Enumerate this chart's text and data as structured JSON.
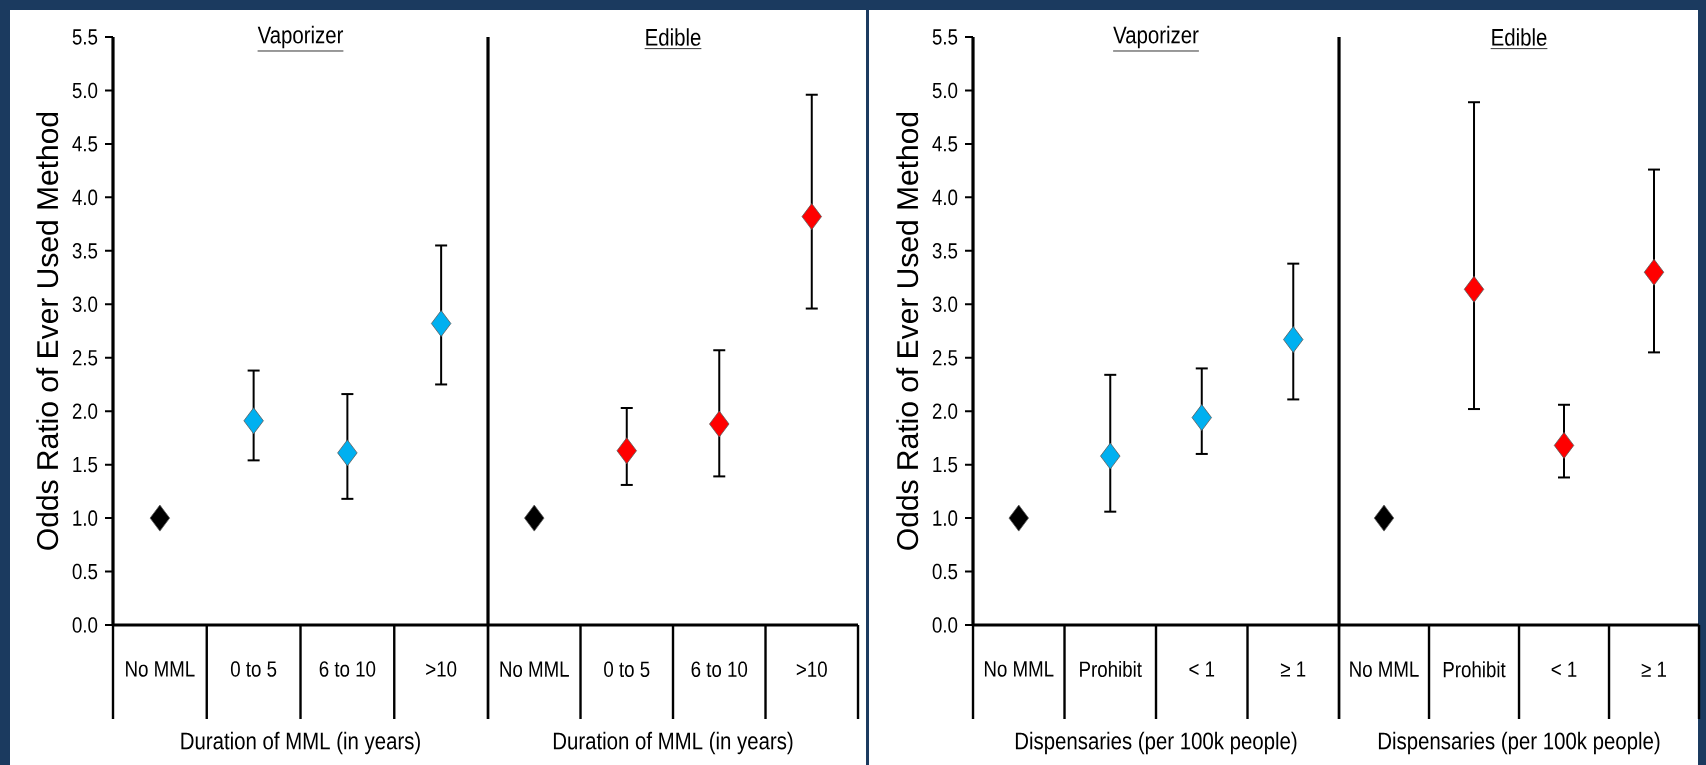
{
  "chart_data": [
    {
      "type": "scatter",
      "title": "Vaporizer",
      "xlabel": "Duration of MML (in years)",
      "ylabel": "Odds Ratio of Ever Used Method",
      "categories": [
        "No MML",
        "0 to 5",
        "6 to 10",
        ">10"
      ],
      "marker": "diamond",
      "ylim": [
        0,
        5.5
      ],
      "yticks": [
        {
          "value": 0,
          "label": "0.0"
        },
        0.5,
        {
          "value": 1,
          "label": "1.0"
        },
        1.5,
        {
          "value": 2,
          "label": "2.0"
        },
        2.5,
        {
          "value": 3,
          "label": "3.0"
        },
        3.5,
        {
          "value": 4,
          "label": "4.0"
        },
        4.5,
        {
          "value": 5,
          "label": "5.0"
        },
        5.5
      ],
      "series": [
        {
          "color": "#000000",
          "values": [
            1.0,
            null,
            null,
            null
          ]
        },
        {
          "color": "#00b0f0",
          "values": [
            null,
            1.91,
            1.61,
            2.82
          ],
          "errors": [
            null,
            [
              1.54,
              2.38
            ],
            [
              1.18,
              2.16
            ],
            [
              2.25,
              3.55
            ]
          ]
        }
      ]
    },
    {
      "type": "scatter",
      "title": "Edible",
      "xlabel": "Duration of MML (in years)",
      "categories": [
        "No MML",
        "0 to 5",
        "6 to 10",
        ">10"
      ],
      "marker": "diamond",
      "ylim": [
        0,
        5.5
      ],
      "tick_labels": "x",
      "series": [
        {
          "color": "#000000",
          "values": [
            1.0,
            null,
            null,
            null
          ]
        },
        {
          "color": "#ff0000",
          "values": [
            null,
            1.63,
            1.88,
            3.82
          ],
          "errors": [
            null,
            [
              1.31,
              2.03
            ],
            [
              1.39,
              2.57
            ],
            [
              2.96,
              4.96
            ]
          ]
        }
      ]
    },
    {
      "type": "scatter",
      "title": "Vaporizer",
      "xlabel": "Dispensaries (per 100k people)",
      "ylabel": "Odds Ratio of Ever Used Method",
      "categories": [
        "No MML",
        "Prohibit",
        "< 1",
        "≥ 1"
      ],
      "marker": "diamond",
      "ylim": [
        0,
        5.5
      ],
      "yticks": [
        {
          "value": 0,
          "label": "0.0"
        },
        0.5,
        {
          "value": 1,
          "label": "1.0"
        },
        1.5,
        {
          "value": 2,
          "label": "2.0"
        },
        2.5,
        {
          "value": 3,
          "label": "3.0"
        },
        3.5,
        {
          "value": 4,
          "label": "4.0"
        },
        4.5,
        {
          "value": 5,
          "label": "5.0"
        },
        5.5
      ],
      "series": [
        {
          "color": "#000000",
          "values": [
            1.0,
            null,
            null,
            null
          ]
        },
        {
          "color": "#00b0f0",
          "values": [
            null,
            1.58,
            1.94,
            2.67
          ],
          "errors": [
            null,
            [
              1.06,
              2.34
            ],
            [
              1.6,
              2.4
            ],
            [
              2.11,
              3.38
            ]
          ]
        }
      ]
    },
    {
      "type": "scatter",
      "title": "Edible",
      "xlabel": "Dispensaries (per 100k people)",
      "categories": [
        "No MML",
        "Prohibit",
        "< 1",
        "≥ 1"
      ],
      "marker": "diamond",
      "ylim": [
        0,
        5.5
      ],
      "tick_labels": "x",
      "series": [
        {
          "color": "#000000",
          "values": [
            1.0,
            null,
            null,
            null
          ]
        },
        {
          "color": "#ff0000",
          "values": [
            null,
            3.14,
            1.68,
            3.3
          ],
          "errors": [
            null,
            [
              2.02,
              4.89
            ],
            [
              1.38,
              2.06
            ],
            [
              2.55,
              4.26
            ]
          ]
        }
      ]
    }
  ]
}
